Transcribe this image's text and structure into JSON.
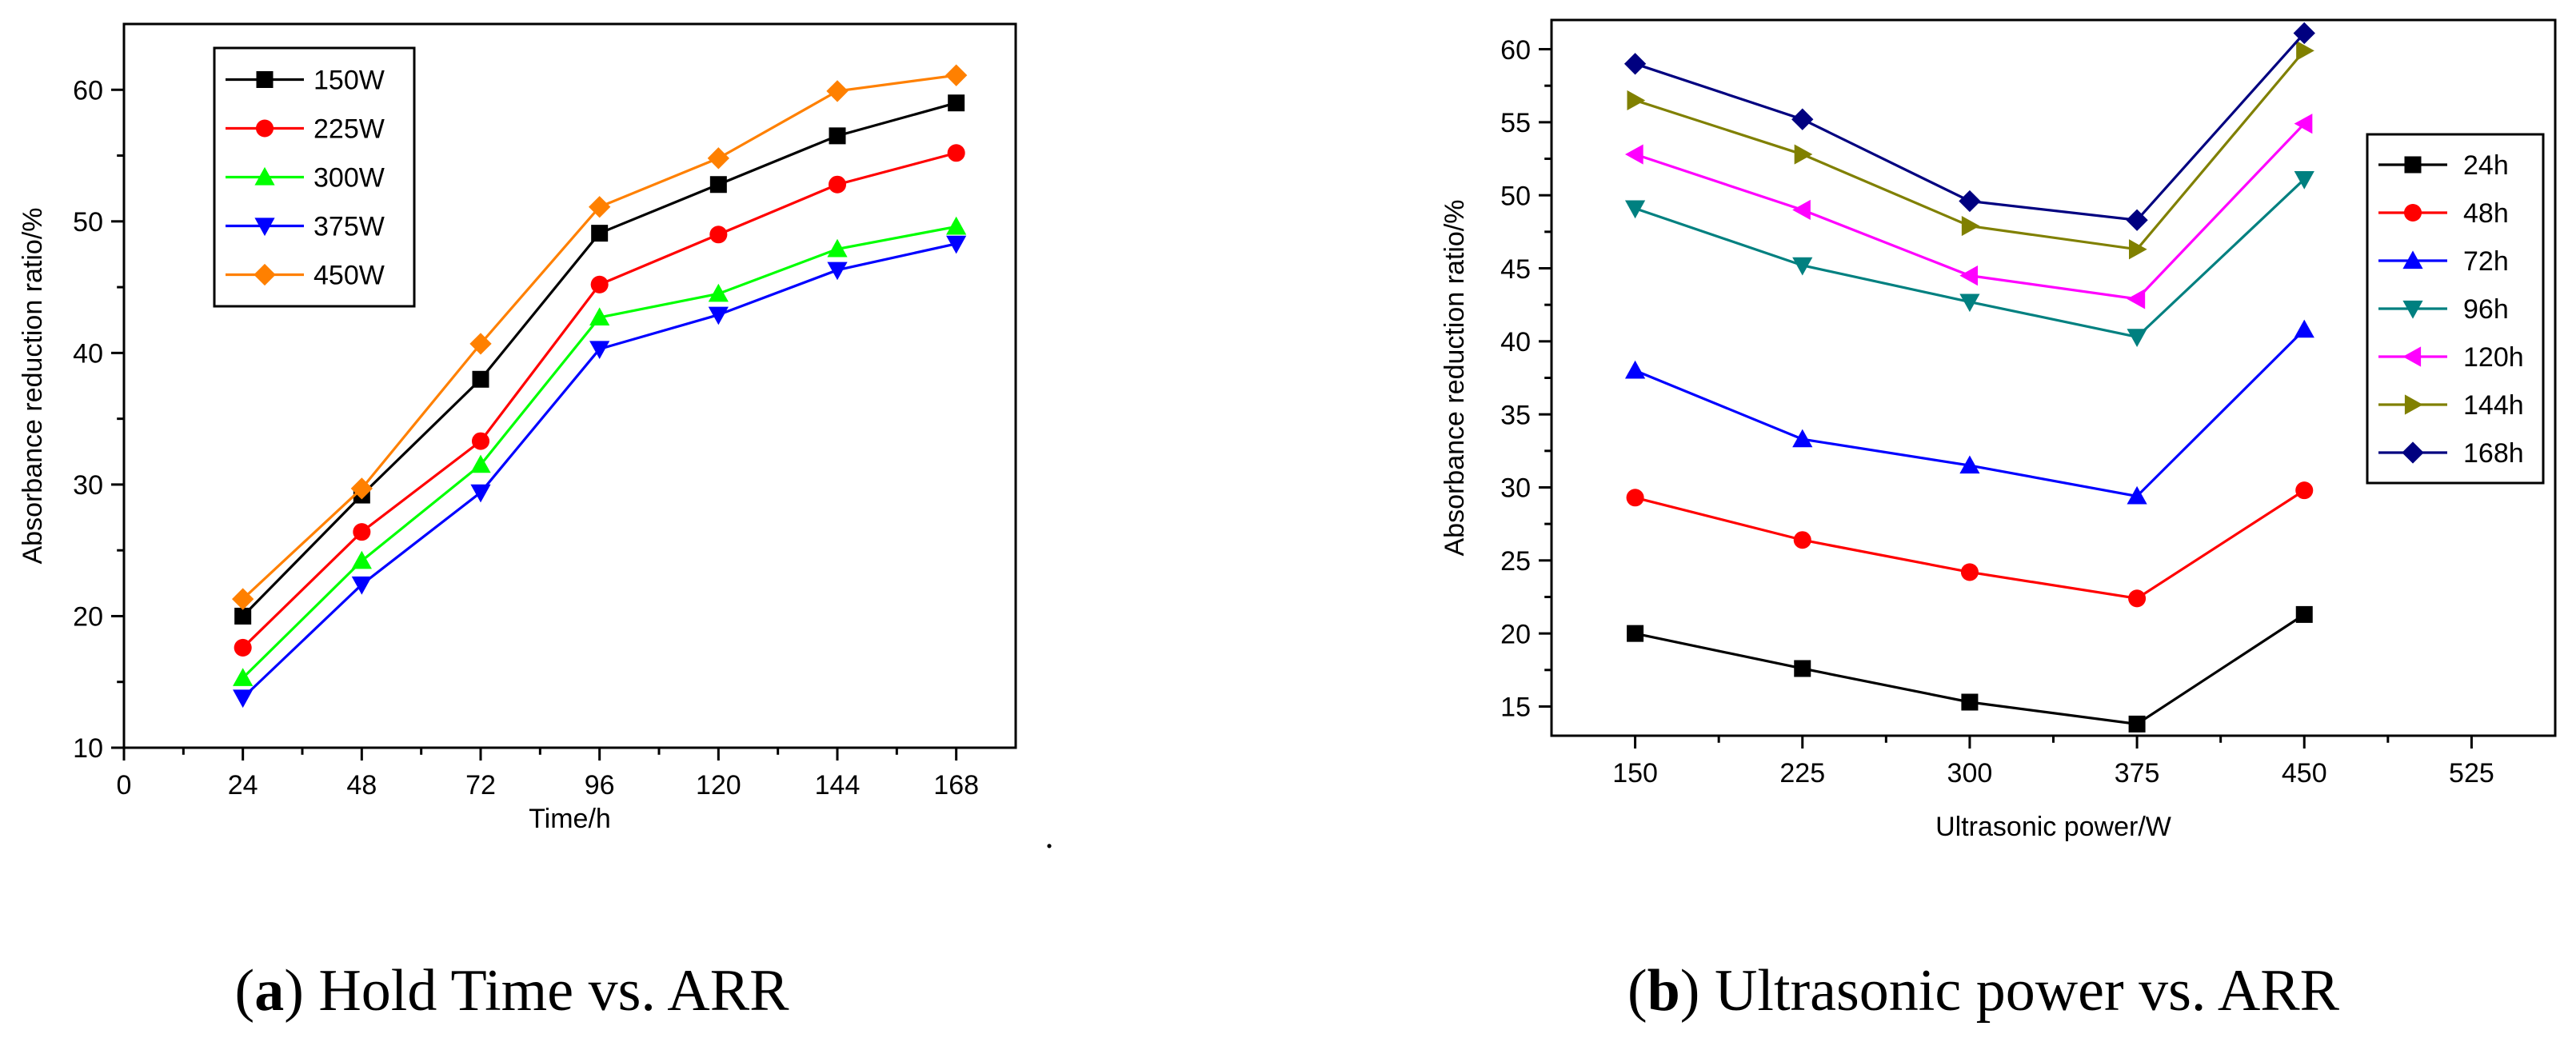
{
  "chart_data": [
    {
      "id": "a",
      "type": "line",
      "xlabel": "Time/h",
      "ylabel": "Absorbance reduction ratio/%",
      "xlim": [
        0,
        180
      ],
      "ylim": [
        10,
        65
      ],
      "xticks": [
        0,
        24,
        48,
        72,
        96,
        120,
        144,
        168
      ],
      "yticks": [
        10,
        20,
        30,
        40,
        50,
        60
      ],
      "x": [
        24,
        48,
        72,
        96,
        120,
        144,
        168
      ],
      "legend_position": "top-left",
      "series": [
        {
          "name": "150W",
          "color": "#000000",
          "marker": "square",
          "values": [
            20.0,
            29.2,
            38.0,
            49.1,
            52.8,
            56.5,
            59.0
          ]
        },
        {
          "name": "225W",
          "color": "#ff0000",
          "marker": "circle",
          "values": [
            17.6,
            26.4,
            33.3,
            45.2,
            49.0,
            52.8,
            55.2
          ]
        },
        {
          "name": "300W",
          "color": "#00ff00",
          "marker": "triangle-up",
          "values": [
            15.3,
            24.2,
            31.5,
            42.7,
            44.5,
            47.9,
            49.6
          ]
        },
        {
          "name": "375W",
          "color": "#0000ff",
          "marker": "triangle-down",
          "values": [
            13.8,
            22.4,
            29.4,
            40.3,
            42.9,
            46.3,
            48.3
          ]
        },
        {
          "name": "450W",
          "color": "#ff8000",
          "marker": "diamond",
          "values": [
            21.3,
            29.7,
            40.7,
            51.1,
            54.8,
            59.9,
            61.1
          ]
        }
      ],
      "caption_letter": "a",
      "caption_text": "Hold Time vs. ARR"
    },
    {
      "id": "b",
      "type": "line",
      "xlabel": "Ultrasonic power/W",
      "ylabel": "Absorbance reduction ratio/%",
      "xlim": [
        112.5,
        562.5
      ],
      "ylim": [
        13,
        62
      ],
      "xticks": [
        150,
        225,
        300,
        375,
        450,
        525
      ],
      "yticks": [
        15,
        20,
        25,
        30,
        35,
        40,
        45,
        50,
        55,
        60
      ],
      "x": [
        150,
        225,
        300,
        375,
        450
      ],
      "legend_position": "right",
      "series": [
        {
          "name": "24h",
          "color": "#000000",
          "marker": "square",
          "values": [
            20.0,
            17.6,
            15.3,
            13.8,
            21.3
          ]
        },
        {
          "name": "48h",
          "color": "#ff0000",
          "marker": "circle",
          "values": [
            29.3,
            26.4,
            24.2,
            22.4,
            29.8
          ]
        },
        {
          "name": "72h",
          "color": "#0000ff",
          "marker": "triangle-up",
          "values": [
            38.0,
            33.3,
            31.5,
            29.4,
            40.8
          ]
        },
        {
          "name": "96h",
          "color": "#008080",
          "marker": "triangle-down",
          "values": [
            49.1,
            45.2,
            42.7,
            40.3,
            51.1
          ]
        },
        {
          "name": "120h",
          "color": "#ff00ff",
          "marker": "triangle-left",
          "values": [
            52.8,
            49.0,
            44.5,
            42.9,
            54.9
          ]
        },
        {
          "name": "144h",
          "color": "#808000",
          "marker": "triangle-right",
          "values": [
            56.5,
            52.8,
            47.9,
            46.3,
            59.9
          ]
        },
        {
          "name": "168h",
          "color": "#000080",
          "marker": "diamond",
          "values": [
            59.0,
            55.2,
            49.6,
            48.3,
            61.1
          ]
        }
      ],
      "caption_letter": "b",
      "caption_text": "Ultrasonic power vs. ARR"
    }
  ],
  "separator_mark": "."
}
